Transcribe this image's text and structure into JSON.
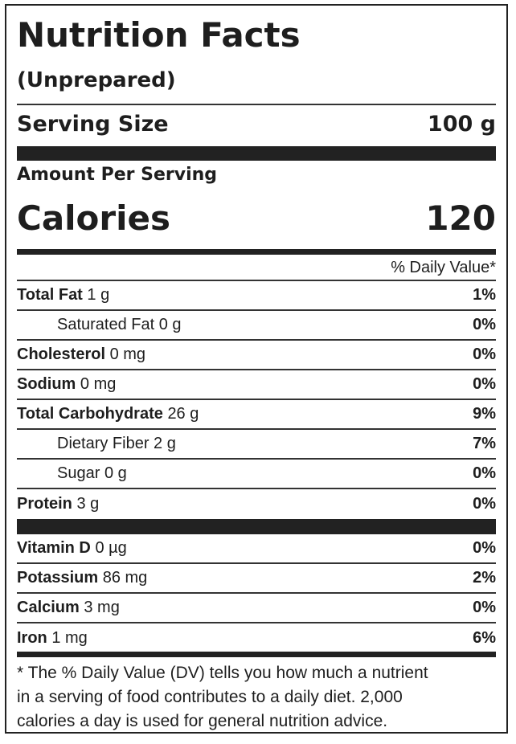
{
  "title": "Nutrition Facts",
  "subtitle": "(Unprepared)",
  "serving": {
    "label": "Serving Size",
    "value": "100 g"
  },
  "amount_per_serving": "Amount Per Serving",
  "calories": {
    "label": "Calories",
    "value": "120"
  },
  "daily_value_header": "% Daily Value*",
  "nutrients": [
    {
      "name": "Total Fat",
      "amount": "1 g",
      "dv": "1%",
      "sub": [
        {
          "name": "Saturated Fat",
          "amount": "0 g",
          "dv": "0%"
        }
      ]
    },
    {
      "name": "Cholesterol",
      "amount": "0 mg",
      "dv": "0%"
    },
    {
      "name": "Sodium",
      "amount": "0 mg",
      "dv": "0%"
    },
    {
      "name": "Total Carbohydrate",
      "amount": "26 g",
      "dv": "9%",
      "sub": [
        {
          "name": "Dietary Fiber",
          "amount": "2 g",
          "dv": "7%"
        },
        {
          "name": "Sugar",
          "amount": "0 g",
          "dv": "0%"
        }
      ]
    },
    {
      "name": "Protein",
      "amount": "3 g",
      "dv": "0%"
    }
  ],
  "vitamins": [
    {
      "name": "Vitamin D",
      "amount": "0 µg",
      "dv": "0%"
    },
    {
      "name": "Potassium",
      "amount": "86 mg",
      "dv": "2%"
    },
    {
      "name": "Calcium",
      "amount": "3 mg",
      "dv": "0%"
    },
    {
      "name": "Iron",
      "amount": "1 mg",
      "dv": "6%"
    }
  ],
  "footnote": [
    "* The % Daily Value (DV) tells you how much a nutrient",
    "in a serving of food contributes to a daily diet. 2,000",
    "calories a day is used for general nutrition advice."
  ]
}
